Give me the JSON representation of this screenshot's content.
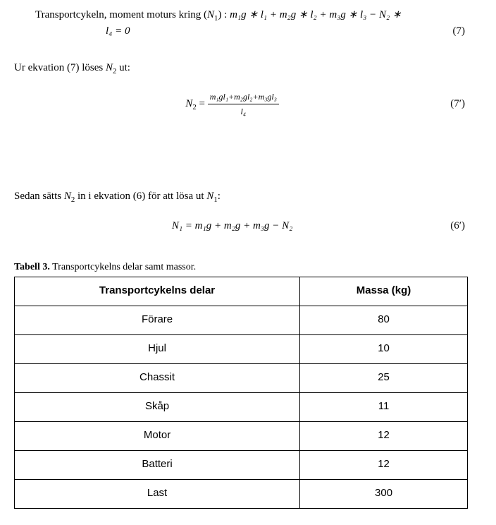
{
  "eq7": {
    "line1_prefix": "Transportcykeln, moment moturs kring (",
    "line1_n1": "N",
    "line1_n1_sub": "1",
    "line1_after_n1": ") : ",
    "terms": "m₁g ∗ l₁ + m₂g ∗ l₂ + m₃g ∗ l₃ − N₂ ∗",
    "line2_lhs": "l₄ = 0",
    "num": "(7)"
  },
  "para1_a": "Ur ekvation (7) löses ",
  "para1_n2": "N",
  "para1_n2_sub": "2",
  "para1_b": " ut:",
  "eq7p": {
    "lhs_var": "N",
    "lhs_sub": "2",
    "eq": " = ",
    "numerator": "m₁gl₁+m₂gl₂+m₃gl₃",
    "denominator": "l₄",
    "num": "(7′)"
  },
  "para2_a": "Sedan sätts ",
  "para2_n2": "N",
  "para2_n2_sub": "2",
  "para2_b": " in i ekvation (6) för att lösa ut ",
  "para2_n1": "N",
  "para2_n1_sub": "1",
  "para2_c": ":",
  "eq6p": {
    "content": "N₁ = m₁g + m₂g + m₃g − N₂",
    "num": "(6′)"
  },
  "table": {
    "caption_bold": "Tabell 3.",
    "caption_rest": " Transportcykelns delar samt massor.",
    "header1": "Transportcykelns delar",
    "header2": "Massa (kg)",
    "rows": [
      {
        "part": "Förare",
        "mass": "80"
      },
      {
        "part": "Hjul",
        "mass": "10"
      },
      {
        "part": "Chassit",
        "mass": "25"
      },
      {
        "part": "Skåp",
        "mass": "11"
      },
      {
        "part": "Motor",
        "mass": "12"
      },
      {
        "part": "Batteri",
        "mass": "12"
      },
      {
        "part": "Last",
        "mass": "300"
      }
    ]
  }
}
